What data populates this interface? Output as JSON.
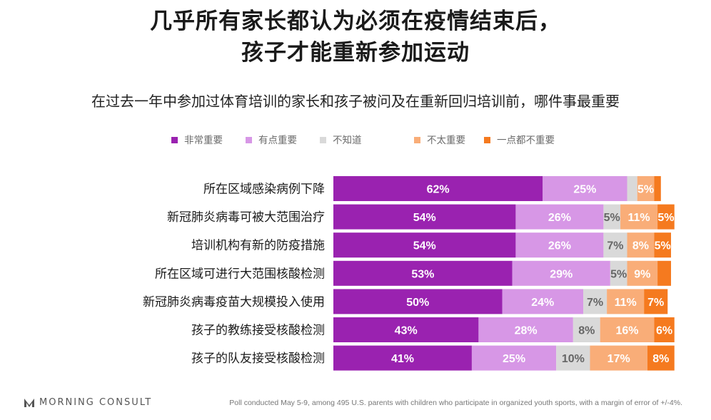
{
  "title_lines": [
    "几乎所有家长都认为必须在疫情结束后，",
    "孩子才能重新参加运动"
  ],
  "subtitle": "在过去一年中参加过体育培训的家长和孩子被问及在重新回归培训前，哪件事最重要",
  "footer": {
    "brand": "MORNING CONSULT",
    "note": "Poll conducted May 5-9, among 495 U.S. parents with children who participate in organized youth sports, with a margin of error of +/-4%."
  },
  "chart_data": {
    "type": "bar",
    "stacked": true,
    "orientation": "horizontal",
    "percent_unit": "%",
    "categories": [
      "所在区域感染病例下降",
      "新冠肺炎病毒可被大范围治疗",
      "培训机构有新的防疫措施",
      "所在区域可进行大范围核酸检测",
      "新冠肺炎病毒疫苗大规模投入使用",
      "孩子的教练接受核酸检测",
      "孩子的队友接受核酸检测"
    ],
    "series": [
      {
        "name": "非常重要",
        "color": "#9a22b0",
        "label_color": "#ffffff",
        "values": [
          62,
          54,
          54,
          53,
          50,
          43,
          41
        ]
      },
      {
        "name": "有点重要",
        "color": "#d797e6",
        "label_color": "#ffffff",
        "values": [
          25,
          26,
          26,
          29,
          24,
          28,
          25
        ]
      },
      {
        "name": "不知道",
        "color": "#d9d9d9",
        "label_color": "#666666",
        "values": [
          3,
          5,
          7,
          5,
          7,
          8,
          10
        ]
      },
      {
        "name": "不太重要",
        "color": "#f9ad78",
        "label_color": "#ffffff",
        "values": [
          5,
          11,
          8,
          9,
          11,
          16,
          17
        ]
      },
      {
        "name": "一点都不重要",
        "color": "#f57a1f",
        "label_color": "#ffffff",
        "values": [
          2,
          5,
          5,
          4,
          7,
          6,
          8
        ]
      }
    ],
    "data_labels": [
      [
        "62%",
        "25%",
        "",
        "5%",
        ""
      ],
      [
        "54%",
        "26%",
        "5%",
        "11%",
        "5%"
      ],
      [
        "54%",
        "26%",
        "7%",
        "8%",
        "5%"
      ],
      [
        "53%",
        "29%",
        "5%",
        "9%",
        ""
      ],
      [
        "50%",
        "24%",
        "7%",
        "11%",
        "7%"
      ],
      [
        "43%",
        "28%",
        "8%",
        "16%",
        "6%"
      ],
      [
        "41%",
        "25%",
        "10%",
        "17%",
        "8%"
      ]
    ],
    "legend_position": "top",
    "grid": false
  }
}
